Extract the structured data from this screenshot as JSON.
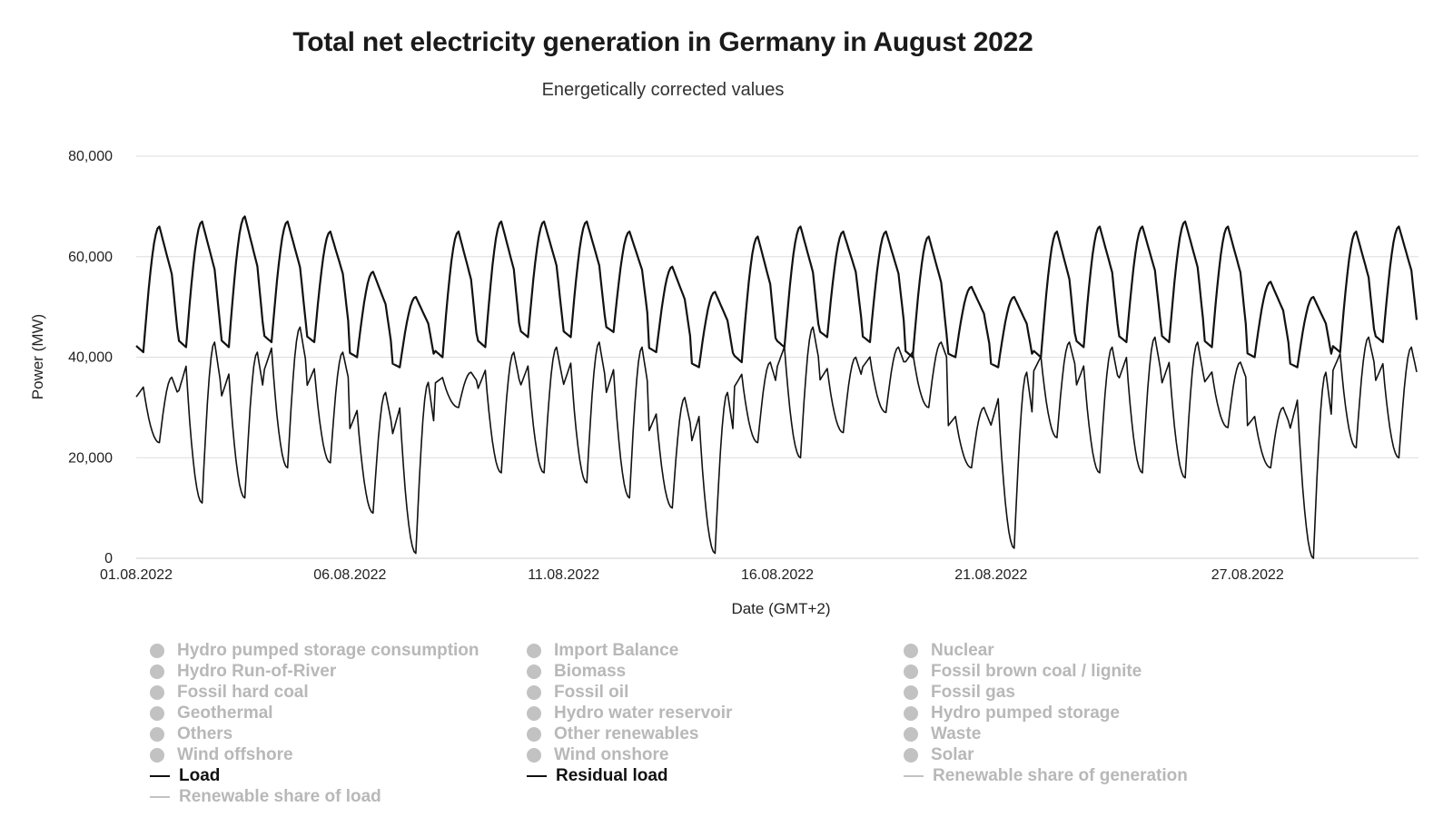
{
  "chart_data": {
    "type": "line",
    "title": "Total net electricity generation in Germany in August 2022",
    "subtitle": "Energetically corrected values",
    "xlabel": "Date (GMT+2)",
    "ylabel": "Power (MW)",
    "ylim": [
      0,
      80000
    ],
    "xlim": [
      "2022-08-01T00:00",
      "2022-08-31T00:00"
    ],
    "yticks": [
      0,
      20000,
      40000,
      60000,
      80000
    ],
    "ytick_labels": [
      "0",
      "20,000",
      "40,000",
      "60,000",
      "80,000"
    ],
    "xticks": [
      "2022-08-01",
      "2022-08-06",
      "2022-08-11",
      "2022-08-16",
      "2022-08-21",
      "2022-08-27"
    ],
    "xtick_labels": [
      "01.08.2022",
      "06.08.2022",
      "11.08.2022",
      "16.08.2022",
      "21.08.2022",
      "27.08.2022"
    ],
    "grid": true,
    "legend_position": "bottom",
    "series": [
      {
        "name": "Load",
        "color": "#111111",
        "daily_minimum": [
          41000,
          42000,
          42000,
          43000,
          43000,
          40000,
          38000,
          40000,
          42000,
          44000,
          44000,
          45000,
          41000,
          38000,
          39000,
          42000,
          44000,
          43000,
          40000,
          40000,
          38000,
          40000,
          42000,
          43000,
          43000,
          42000,
          40000,
          38000,
          41000,
          43000,
          43000
        ],
        "daily_peak": [
          66000,
          67000,
          68000,
          67000,
          65000,
          57000,
          52000,
          65000,
          67000,
          67000,
          67000,
          65000,
          58000,
          53000,
          64000,
          66000,
          65000,
          65000,
          64000,
          54000,
          52000,
          65000,
          66000,
          66000,
          67000,
          66000,
          55000,
          52000,
          65000,
          66000,
          66000
        ]
      },
      {
        "name": "Residual load",
        "color": "#111111",
        "daily_minimum": [
          23000,
          11000,
          12000,
          18000,
          19000,
          9000,
          1000,
          30000,
          17000,
          17000,
          15000,
          12000,
          10000,
          1000,
          23000,
          20000,
          25000,
          29000,
          30000,
          18000,
          2000,
          24000,
          17000,
          17000,
          16000,
          26000,
          18000,
          0,
          22000,
          20000,
          26000
        ],
        "daily_peak": [
          36000,
          43000,
          41000,
          46000,
          41000,
          33000,
          35000,
          37000,
          41000,
          42000,
          43000,
          42000,
          32000,
          33000,
          39000,
          46000,
          40000,
          42000,
          43000,
          30000,
          37000,
          43000,
          42000,
          44000,
          43000,
          39000,
          30000,
          37000,
          44000,
          42000,
          40000
        ]
      }
    ]
  },
  "legend": {
    "items": [
      {
        "label": "Hydro pumped storage consumption",
        "marker": "dot",
        "active": false
      },
      {
        "label": "Import Balance",
        "marker": "dot",
        "active": false
      },
      {
        "label": "Nuclear",
        "marker": "dot",
        "active": false
      },
      {
        "label": "Hydro Run-of-River",
        "marker": "dot",
        "active": false
      },
      {
        "label": "Biomass",
        "marker": "dot",
        "active": false
      },
      {
        "label": "Fossil brown coal / lignite",
        "marker": "dot",
        "active": false
      },
      {
        "label": "Fossil hard coal",
        "marker": "dot",
        "active": false
      },
      {
        "label": "Fossil oil",
        "marker": "dot",
        "active": false
      },
      {
        "label": "Fossil gas",
        "marker": "dot",
        "active": false
      },
      {
        "label": "Geothermal",
        "marker": "dot",
        "active": false
      },
      {
        "label": "Hydro water reservoir",
        "marker": "dot",
        "active": false
      },
      {
        "label": "Hydro pumped storage",
        "marker": "dot",
        "active": false
      },
      {
        "label": "Others",
        "marker": "dot",
        "active": false
      },
      {
        "label": "Other renewables",
        "marker": "dot",
        "active": false
      },
      {
        "label": "Waste",
        "marker": "dot",
        "active": false
      },
      {
        "label": "Wind offshore",
        "marker": "dot",
        "active": false
      },
      {
        "label": "Wind onshore",
        "marker": "dot",
        "active": false
      },
      {
        "label": "Solar",
        "marker": "dot",
        "active": false
      },
      {
        "label": "Load",
        "marker": "line",
        "active": true
      },
      {
        "label": "Residual load",
        "marker": "line",
        "active": true
      },
      {
        "label": "Renewable share of generation",
        "marker": "line",
        "active": false
      },
      {
        "label": "Renewable share of load",
        "marker": "line",
        "active": false
      }
    ]
  },
  "colors": {
    "series_line": "#111111",
    "grid": "#dddddd",
    "legend_inactive": "#b8b8b8"
  }
}
